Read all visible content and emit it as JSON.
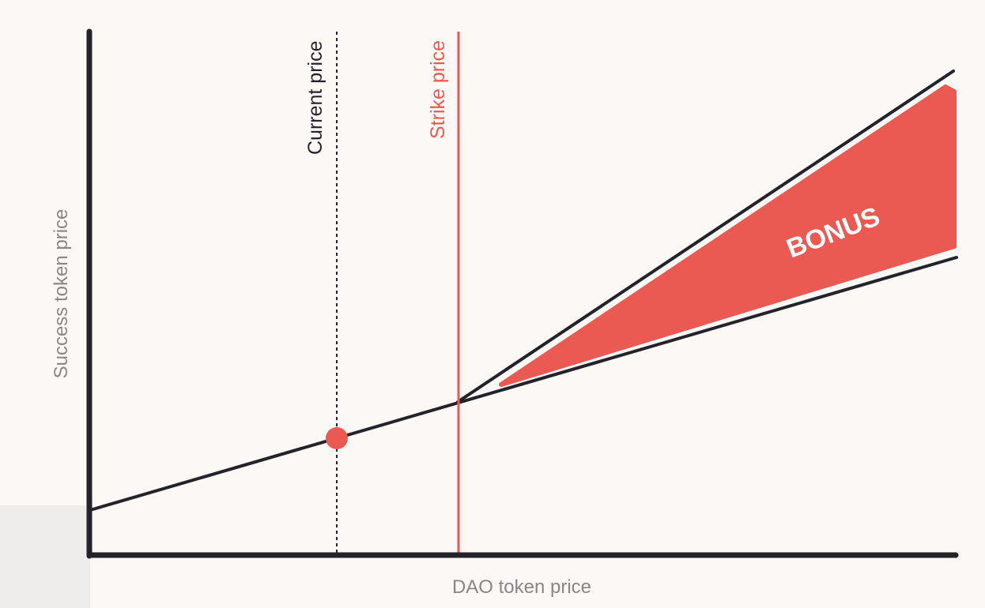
{
  "diagram": {
    "y_axis_label": "Success token price",
    "x_axis_label": "DAO token price",
    "current_price_label": "Current price",
    "strike_price_label": "Strike price",
    "bonus_label": "BONUS"
  },
  "colors": {
    "background": "#fcf8f6",
    "axis": "#25232a",
    "accent": "#ea5a52",
    "axis_text": "#8a8686",
    "corner_panel": "#efedec"
  }
}
